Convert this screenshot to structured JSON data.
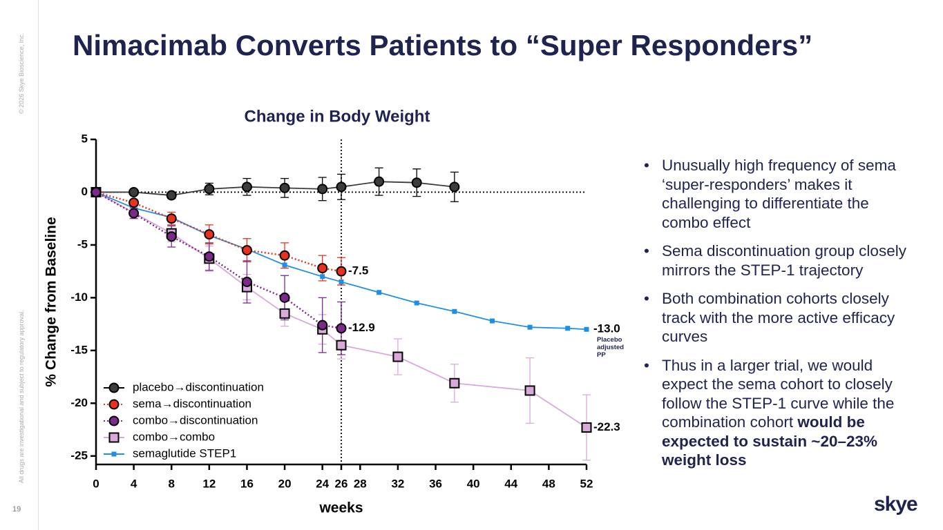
{
  "title": "Nimacimab Converts Patients to “Super Responders”",
  "copyright": "© 2026 Skye Bioscience, Inc.",
  "disclaimer": "All drugs are investigational and subject to regulatory approval.",
  "page_number": "19",
  "logo": "skye",
  "bullets": [
    {
      "text": "Unusually high frequency of sema ‘super-responders’ makes it challenging to differentiate the combo effect"
    },
    {
      "text": "Sema discontinuation group closely mirrors the STEP-1 trajectory"
    },
    {
      "text": "Both combination cohorts closely track with the more active efficacy curves"
    },
    {
      "text": "Thus in a larger trial, we would expect the sema cohort to closely follow the STEP-1 curve while the combination cohort",
      "bold": "would be expected to sustain ~20–23% weight loss"
    }
  ],
  "chart_data": {
    "type": "line",
    "title": "Change in Body Weight",
    "x_label": "weeks",
    "y_label": "% Change from Baseline",
    "annotation": "Placebo adjusted PP",
    "xlim": [
      0,
      52
    ],
    "xticks": [
      0,
      4,
      8,
      12,
      16,
      20,
      24,
      26,
      28,
      32,
      36,
      40,
      44,
      48,
      52
    ],
    "ylim": [
      -25.8,
      5
    ],
    "yticks": [
      5,
      0,
      -5,
      -10,
      -15,
      -20,
      -25
    ],
    "vline": 26,
    "hline": 0,
    "legend": "lower left",
    "series": [
      {
        "name": "placebo→discontinuation",
        "color": "#3c3c3c",
        "marker": "circle",
        "marker_edge": "#000000",
        "line_style": "solid",
        "x": [
          0,
          4,
          8,
          12,
          16,
          20,
          24,
          26,
          30,
          34,
          38
        ],
        "values": [
          0,
          0,
          -0.3,
          0.3,
          0.5,
          0.4,
          0.3,
          0.5,
          1.0,
          0.9,
          0.5
        ],
        "errors": [
          0,
          0,
          0.3,
          0.55,
          0.8,
          0.9,
          1.1,
          1.2,
          1.3,
          1.3,
          1.4
        ]
      },
      {
        "name": "sema→discontinuation",
        "color": "#e8321e",
        "marker": "circle",
        "marker_edge": "#000000",
        "line_style": "dotted",
        "x": [
          0,
          4,
          8,
          12,
          16,
          20,
          24,
          26
        ],
        "values": [
          0,
          -1,
          -2.5,
          -4,
          -5.5,
          -6,
          -7.2,
          -7.5
        ],
        "errors": [
          0,
          0.3,
          0.6,
          0.9,
          1.1,
          1.2,
          1.2,
          1.3
        ],
        "value_labels": [
          null,
          null,
          null,
          null,
          null,
          null,
          null,
          "-7.5"
        ]
      },
      {
        "name": "combo→discontinuation",
        "color": "#7b2a8a",
        "marker": "circle",
        "marker_edge": "#000000",
        "line_style": "dotted",
        "x": [
          0,
          4,
          8,
          12,
          16,
          20,
          24,
          26
        ],
        "values": [
          0,
          -2,
          -4.2,
          -6.1,
          -8.5,
          -10,
          -12.6,
          -12.9
        ],
        "errors": [
          0,
          0.5,
          1,
          1.3,
          2,
          2.1,
          2.6,
          2.5
        ],
        "value_labels": [
          null,
          null,
          null,
          null,
          null,
          null,
          null,
          "-12.9"
        ]
      },
      {
        "name": "combo→combo",
        "color": "#d9a9d9",
        "marker": "square",
        "marker_edge": "#000000",
        "line_style": "solid",
        "x": [
          0,
          8,
          12,
          16,
          20,
          24,
          26,
          32,
          38,
          46,
          52
        ],
        "values": [
          0,
          -3.9,
          -6.3,
          -9,
          -11.5,
          -13,
          -14.5,
          -15.6,
          -18.1,
          -18.8,
          -22.3
        ],
        "errors": [
          0,
          0.8,
          1.2,
          1.2,
          1.2,
          1.4,
          1.3,
          1.7,
          1.8,
          3.1,
          3.1
        ],
        "value_labels": [
          null,
          null,
          null,
          null,
          null,
          null,
          null,
          null,
          null,
          null,
          "-22.3"
        ]
      },
      {
        "name": "semaglutide STEP1",
        "color": "#1f8fe5",
        "marker": "small-square",
        "marker_edge": "none",
        "line_style": "solid",
        "x": [
          0,
          4,
          8,
          12,
          16,
          20,
          24,
          26,
          30,
          34,
          38,
          42,
          46,
          50,
          52
        ],
        "values": [
          0,
          -1.5,
          -2.4,
          -4.1,
          -5.4,
          -6.9,
          -8,
          -8.5,
          -9.5,
          -10.5,
          -11.3,
          -12.2,
          -12.8,
          -12.9,
          -13.0
        ],
        "value_labels": [
          null,
          null,
          null,
          null,
          null,
          null,
          null,
          null,
          null,
          null,
          null,
          null,
          null,
          null,
          "-13.0"
        ]
      }
    ]
  }
}
